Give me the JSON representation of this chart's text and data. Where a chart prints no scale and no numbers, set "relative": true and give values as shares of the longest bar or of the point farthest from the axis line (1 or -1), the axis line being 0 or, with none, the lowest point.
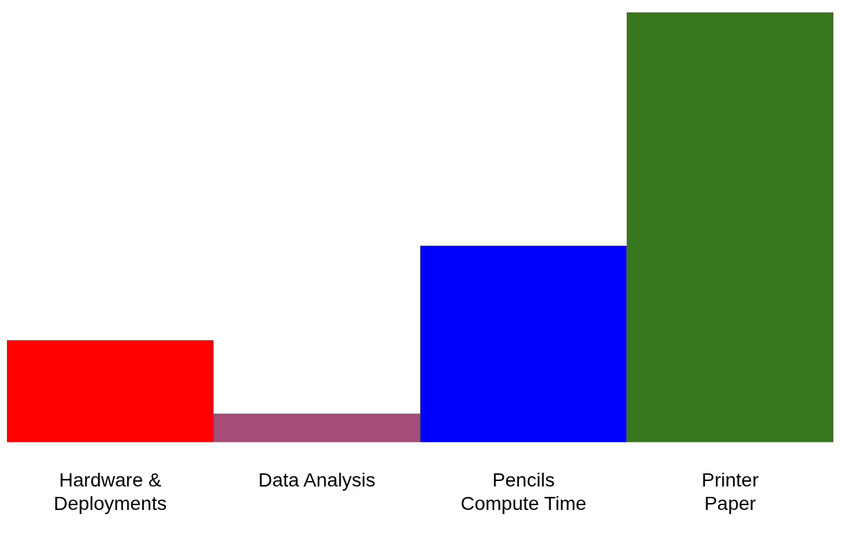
{
  "chart_data": {
    "type": "bar",
    "relative": true,
    "categories": [
      "Hardware &\nDeployments",
      "Data Analysis",
      "Pencils\nCompute Time",
      "Printer\nPaper"
    ],
    "values": [
      0.237,
      0.066,
      0.457,
      1
    ],
    "colors": [
      "#ff0000",
      "#a64d79",
      "#0000ff",
      "#38761d"
    ],
    "grid": false,
    "legend": false
  }
}
